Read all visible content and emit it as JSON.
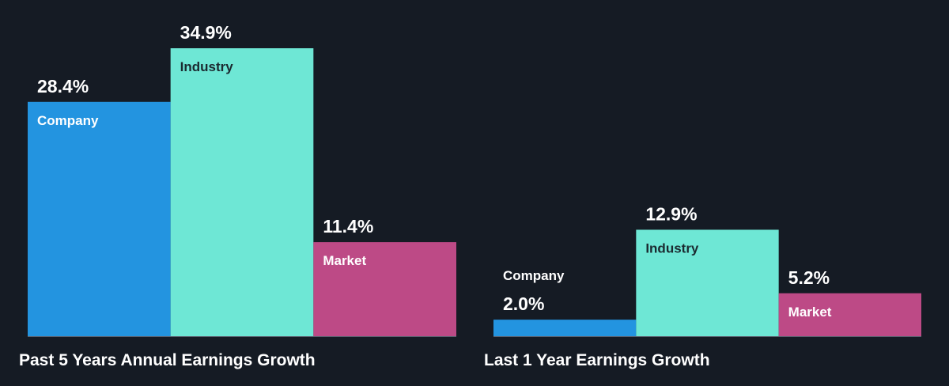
{
  "colors": {
    "background": "#151b24",
    "company": "#2394e0",
    "industry": "#6ee7d5",
    "market": "#bd4a86",
    "axis": "#5a6270",
    "text": "#ffffff",
    "bar_label_dark": "#1b2a30"
  },
  "chart_data": [
    {
      "type": "bar",
      "title": "Past 5 Years Annual Earnings Growth",
      "categories": [
        "Company",
        "Industry",
        "Market"
      ],
      "values": [
        28.4,
        34.9,
        11.4
      ],
      "value_labels": [
        "28.4%",
        "34.9%",
        "11.4%"
      ],
      "unit": "%",
      "ylim": [
        0,
        34.9
      ],
      "grid": false,
      "legend": "none"
    },
    {
      "type": "bar",
      "title": "Last 1 Year Earnings Growth",
      "categories": [
        "Company",
        "Industry",
        "Market"
      ],
      "values": [
        2.0,
        12.9,
        5.2
      ],
      "value_labels": [
        "2.0%",
        "12.9%",
        "5.2%"
      ],
      "unit": "%",
      "ylim": [
        0,
        34.9
      ],
      "grid": false,
      "legend": "none"
    }
  ]
}
